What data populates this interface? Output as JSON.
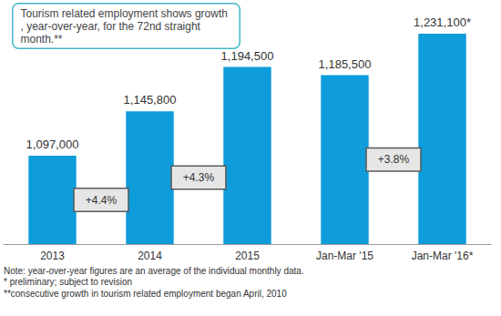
{
  "chart_data": {
    "type": "bar",
    "title": "Tourism related employment shows growth, year-over-year, for the 72nd straight month.**",
    "categories": [
      "2013",
      "2014",
      "2015",
      "Jan-Mar '15",
      "Jan-Mar '16*"
    ],
    "values": [
      1097000,
      1145800,
      1194500,
      1185500,
      1231100
    ],
    "value_labels": [
      "1,097,000",
      "1,145,800",
      "1,194,500",
      "1,185,500",
      "1,231,100*"
    ],
    "color": "#0e9cdb",
    "ylim": [
      1000000,
      1250000
    ],
    "yticks": [
      1000000,
      1250000
    ],
    "grid": false,
    "data_labels": true,
    "tick_labels": "x",
    "annotations": [
      {
        "text": "+4.4%",
        "from": "2013",
        "to": "2014"
      },
      {
        "text": "+4.3%",
        "from": "2014",
        "to": "2015"
      },
      {
        "text": "+3.8%",
        "from": "Jan-Mar '15",
        "to": "Jan-Mar '16*"
      }
    ],
    "notes": [
      "Note: year-over-year figures are an average of the individual monthly data.",
      "* preliminary; subject to revision",
      "**consecutive growth in tourism related employment began April, 2010"
    ]
  }
}
